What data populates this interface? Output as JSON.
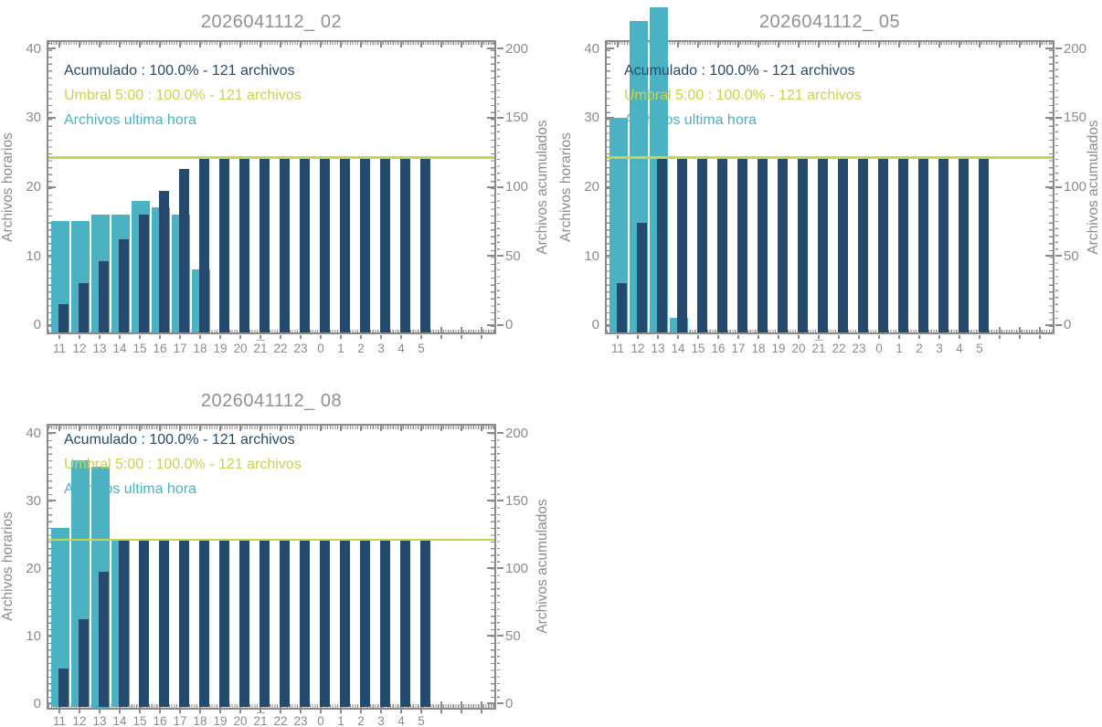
{
  "figure": {
    "background": "#ffffff",
    "colors": {
      "hourly": "#4bb2c3",
      "accumulated": "#264a6d",
      "threshold": "#c9d44c",
      "axis_gray": "#8b8b8b",
      "title_gray": "#919191"
    }
  },
  "chart_data": [
    {
      "type": "bar",
      "title": "2026041112_ 02",
      "categories": [
        "11",
        "12",
        "13",
        "14",
        "15",
        "16",
        "17",
        "18",
        "19",
        "20",
        "21",
        "22",
        "23",
        "0",
        "1",
        "2",
        "3",
        "4",
        "5"
      ],
      "series": [
        {
          "name": "Archivos ultima hora",
          "axis": "left",
          "color_key": "hourly",
          "values": [
            15,
            15,
            16,
            16,
            18,
            17,
            16,
            8,
            0,
            0,
            0,
            0,
            0,
            0,
            0,
            0,
            0,
            0,
            0
          ]
        },
        {
          "name": "Acumulado",
          "axis": "right",
          "color_key": "accumulated",
          "values": [
            15,
            30,
            46,
            62,
            80,
            97,
            113,
            121,
            121,
            121,
            121,
            121,
            121,
            121,
            121,
            121,
            121,
            121,
            121
          ]
        }
      ],
      "threshold_line": {
        "name": "Umbral 5:00",
        "axis": "right",
        "value": 121
      },
      "legend": [
        {
          "text": "Acumulado : 100.0% - 121 archivos",
          "color_key": "accumulated"
        },
        {
          "text": "Umbral 5:00 : 100.0% - 121 archivos",
          "color_key": "threshold"
        },
        {
          "text": "Archivos ultima hora",
          "color_key": "hourly"
        }
      ],
      "ylabel_left": "Archivos horarios",
      "ylabel_right": "Archivos acumulados",
      "ylim_left": [
        0,
        40
      ],
      "ylim_right": [
        0,
        200
      ],
      "yticks_left": [
        0,
        10,
        20,
        30,
        40
      ],
      "yticks_right": [
        0,
        50,
        100,
        150,
        200
      ],
      "grid": false,
      "legend_position": "top-left-inside"
    },
    {
      "type": "bar",
      "title": "2026041112_ 05",
      "categories": [
        "11",
        "12",
        "13",
        "14",
        "15",
        "16",
        "17",
        "18",
        "19",
        "20",
        "21",
        "22",
        "23",
        "0",
        "1",
        "2",
        "3",
        "4",
        "5"
      ],
      "series": [
        {
          "name": "Archivos ultima hora",
          "axis": "left",
          "color_key": "hourly",
          "values": [
            30,
            44,
            46,
            1,
            0,
            0,
            0,
            0,
            0,
            0,
            0,
            0,
            0,
            0,
            0,
            0,
            0,
            0,
            0
          ]
        },
        {
          "name": "Acumulado",
          "axis": "right",
          "color_key": "accumulated",
          "values": [
            30,
            74,
            120,
            121,
            121,
            121,
            121,
            121,
            121,
            121,
            121,
            121,
            121,
            121,
            121,
            121,
            121,
            121,
            121
          ]
        }
      ],
      "threshold_line": {
        "name": "Umbral 5:00",
        "axis": "right",
        "value": 121
      },
      "legend": [
        {
          "text": "Acumulado : 100.0% - 121 archivos",
          "color_key": "accumulated"
        },
        {
          "text": "Umbral 5:00 : 100.0% - 121 archivos",
          "color_key": "threshold"
        },
        {
          "text": "Archivos ultima hora",
          "color_key": "hourly"
        }
      ],
      "ylabel_left": "Archivos horarios",
      "ylabel_right": "Archivos acumulados",
      "ylim_left": [
        0,
        40
      ],
      "ylim_right": [
        0,
        200
      ],
      "yticks_left": [
        0,
        10,
        20,
        30,
        40
      ],
      "yticks_right": [
        0,
        50,
        100,
        150,
        200
      ],
      "grid": false,
      "legend_position": "top-left-inside"
    },
    {
      "type": "bar",
      "title": "2026041112_ 08",
      "categories": [
        "11",
        "12",
        "13",
        "14",
        "15",
        "16",
        "17",
        "18",
        "19",
        "20",
        "21",
        "22",
        "23",
        "0",
        "1",
        "2",
        "3",
        "4",
        "5"
      ],
      "series": [
        {
          "name": "Archivos ultima hora",
          "axis": "left",
          "color_key": "hourly",
          "values": [
            26,
            36,
            35,
            24,
            0,
            0,
            0,
            0,
            0,
            0,
            0,
            0,
            0,
            0,
            0,
            0,
            0,
            0,
            0
          ]
        },
        {
          "name": "Acumulado",
          "axis": "right",
          "color_key": "accumulated",
          "values": [
            26,
            62,
            97,
            121,
            121,
            121,
            121,
            121,
            121,
            121,
            121,
            121,
            121,
            121,
            121,
            121,
            121,
            121,
            121
          ]
        }
      ],
      "threshold_line": {
        "name": "Umbral 5:00",
        "axis": "right",
        "value": 121
      },
      "legend": [
        {
          "text": "Acumulado : 100.0% - 121 archivos",
          "color_key": "accumulated"
        },
        {
          "text": "Umbral 5:00 : 100.0% - 121 archivos",
          "color_key": "threshold"
        },
        {
          "text": "Archivos ultima hora",
          "color_key": "hourly"
        }
      ],
      "ylabel_left": "Archivos horarios",
      "ylabel_right": "Archivos acumulados",
      "ylim_left": [
        0,
        40
      ],
      "ylim_right": [
        0,
        200
      ],
      "yticks_left": [
        0,
        10,
        20,
        30,
        40
      ],
      "yticks_right": [
        0,
        50,
        100,
        150,
        200
      ],
      "grid": false,
      "legend_position": "top-left-inside"
    }
  ]
}
